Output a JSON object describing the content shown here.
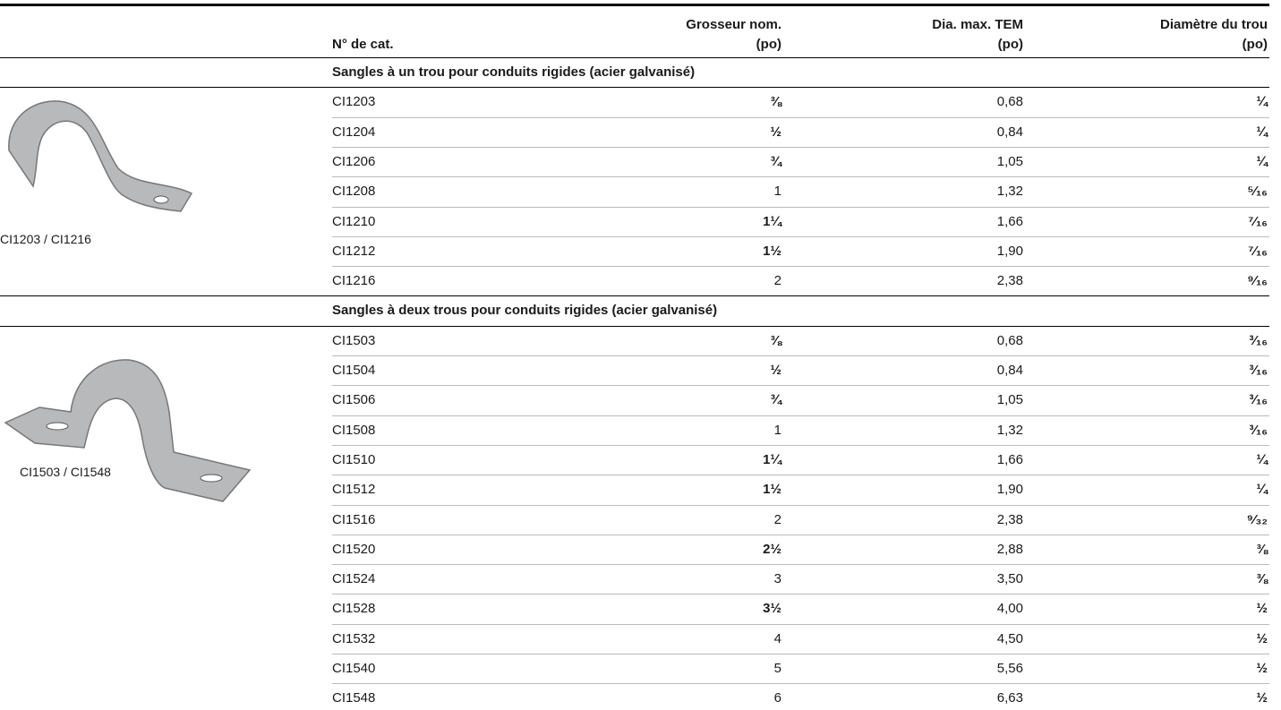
{
  "header": {
    "columns": [
      [
        "N° de cat."
      ],
      [
        "Grosseur nom.",
        "(po)"
      ],
      [
        "Dia. max. TEM",
        "(po)"
      ],
      [
        "Diamètre du trou",
        "(po)"
      ]
    ]
  },
  "sections": [
    {
      "title": "Sangles à un trou pour conduits rigides (acier galvanisé)",
      "image_caption": "CI1203 / CI1216",
      "rows": [
        [
          "CI1203",
          "⅜",
          "0,68",
          "¼"
        ],
        [
          "CI1204",
          "½",
          "0,84",
          "¼"
        ],
        [
          "CI1206",
          "¾",
          "1,05",
          "¼"
        ],
        [
          "CI1208",
          "1",
          "1,32",
          "⁵⁄₁₆"
        ],
        [
          "CI1210",
          "1¼",
          "1,66",
          "⁷⁄₁₆"
        ],
        [
          "CI1212",
          "1½",
          "1,90",
          "⁷⁄₁₆"
        ],
        [
          "CI1216",
          "2",
          "2,38",
          "⁹⁄₁₆"
        ]
      ]
    },
    {
      "title": "Sangles à deux trous pour conduits rigides (acier galvanisé)",
      "image_caption": "CI1503 / CI1548",
      "rows": [
        [
          "CI1503",
          "⅜",
          "0,68",
          "³⁄₁₆"
        ],
        [
          "CI1504",
          "½",
          "0,84",
          "³⁄₁₆"
        ],
        [
          "CI1506",
          "¾",
          "1,05",
          "³⁄₁₆"
        ],
        [
          "CI1508",
          "1",
          "1,32",
          "³⁄₁₆"
        ],
        [
          "CI1510",
          "1¼",
          "1,66",
          "¼"
        ],
        [
          "CI1512",
          "1½",
          "1,90",
          "¼"
        ],
        [
          "CI1516",
          "2",
          "2,38",
          "⁹⁄₃₂"
        ],
        [
          "CI1520",
          "2½",
          "2,88",
          "⅜"
        ],
        [
          "CI1524",
          "3",
          "3,50",
          "⅜"
        ],
        [
          "CI1528",
          "3½",
          "4,00",
          "½"
        ],
        [
          "CI1532",
          "4",
          "4,50",
          "½"
        ],
        [
          "CI1540",
          "5",
          "5,56",
          "½"
        ],
        [
          "CI1548",
          "6",
          "6,63",
          "½"
        ]
      ]
    }
  ]
}
